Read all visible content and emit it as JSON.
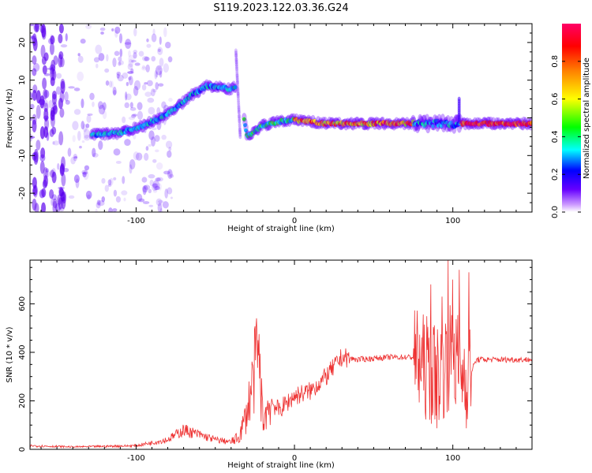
{
  "title": "S119.2023.122.03.36.G24",
  "colors": {
    "snr_line": "#ee3333",
    "axis": "#000000",
    "background": "#ffffff"
  },
  "chart_data": [
    {
      "type": "heatmap",
      "xlabel": "Height of straight line (km)",
      "ylabel": "Frequency (Hz)",
      "xlim": [
        -167,
        150
      ],
      "ylim": [
        -25,
        25
      ],
      "x_ticks": [
        -100,
        0,
        100
      ],
      "y_ticks": [
        -20,
        -10,
        0,
        10,
        20
      ],
      "colorbar": {
        "label": "Normalized spectral amplitude",
        "range": [
          0,
          1
        ],
        "ticks": [
          "0.0",
          "0.2",
          "0.4",
          "0.6",
          "0.8"
        ],
        "colormap": [
          "#ffffff",
          "#6600ff",
          "#0000ff",
          "#00ffff",
          "#00ff00",
          "#ffff00",
          "#ff8000",
          "#ff0000",
          "#ff0066"
        ]
      },
      "ridge": {
        "x": [
          -128,
          -110,
          -95,
          -85,
          -75,
          -65,
          -55,
          -45,
          -40,
          -35,
          -30,
          -25,
          -20,
          -10,
          0,
          10,
          20,
          40,
          60,
          75,
          85,
          95,
          100,
          105,
          120,
          150
        ],
        "y": [
          -4.5,
          -4,
          -2,
          0,
          2.5,
          6,
          8.5,
          8,
          7.5,
          9,
          -5,
          -3.5,
          -2,
          -1,
          -0.5,
          -1,
          -1.5,
          -1.5,
          -1.5,
          -1.5,
          -1.5,
          -1.5,
          -1.8,
          -1.5,
          -1.5,
          -1.5
        ]
      }
    },
    {
      "type": "line",
      "xlabel": "Height of straight line (km)",
      "ylabel": "SNR (10 * v/v)",
      "xlim": [
        -167,
        150
      ],
      "ylim": [
        0,
        780
      ],
      "x_ticks": [
        -100,
        0,
        100
      ],
      "y_ticks": [
        0,
        200,
        400,
        600
      ],
      "envelope": {
        "x": [
          -167,
          -140,
          -100,
          -80,
          -70,
          -60,
          -50,
          -40,
          -35,
          -30,
          -25,
          -22,
          -20,
          -15,
          -10,
          0,
          10,
          20,
          30,
          40,
          60,
          75,
          80,
          85,
          90,
          95,
          100,
          105,
          110,
          115,
          130,
          150
        ],
        "y": [
          15,
          10,
          15,
          40,
          80,
          60,
          40,
          30,
          50,
          150,
          330,
          350,
          120,
          200,
          160,
          220,
          240,
          300,
          380,
          370,
          380,
          380,
          350,
          330,
          300,
          350,
          400,
          320,
          300,
          370,
          370,
          370
        ]
      },
      "spikes": [
        {
          "x": -24,
          "y": 540
        },
        {
          "x": -23,
          "y": 450
        },
        {
          "x": 77,
          "y": 450
        },
        {
          "x": 86,
          "y": 680
        },
        {
          "x": 93,
          "y": 630
        },
        {
          "x": 97,
          "y": 780
        },
        {
          "x": 100,
          "y": 700
        },
        {
          "x": 104,
          "y": 740
        },
        {
          "x": 110,
          "y": 730
        }
      ]
    }
  ]
}
